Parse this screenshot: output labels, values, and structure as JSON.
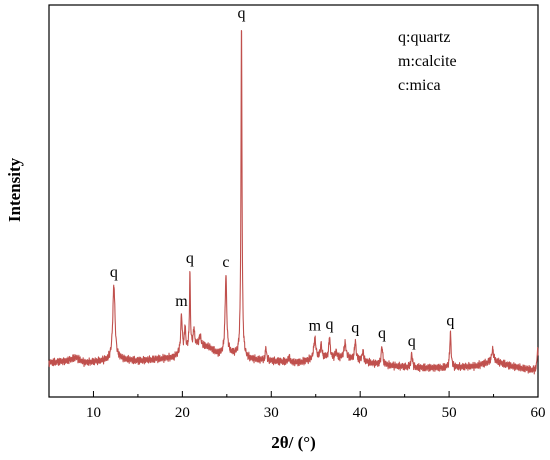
{
  "chart_data": {
    "type": "line",
    "xlabel": "2θ/ (°)",
    "ylabel": "Intensity",
    "xlim": [
      5,
      60
    ],
    "xticks": [
      10,
      20,
      30,
      40,
      50,
      60
    ],
    "xtick_labels": [
      "10",
      "20",
      "30",
      "40",
      "50",
      "60"
    ],
    "y_ticks_shown": false,
    "grid": false,
    "legend_position": "top-right",
    "legend": [
      {
        "key": "q",
        "text": "q:quartz"
      },
      {
        "key": "m",
        "text": "m:calcite"
      },
      {
        "key": "c",
        "text": "c:mica"
      }
    ],
    "colors": {
      "pattern": "#c0504d",
      "text": "#000000",
      "axis": "#000000"
    },
    "baseline_points": [
      [
        5,
        0.045
      ],
      [
        7,
        0.05
      ],
      [
        8,
        0.06
      ],
      [
        9,
        0.045
      ],
      [
        11,
        0.05
      ],
      [
        13,
        0.055
      ],
      [
        15,
        0.05
      ],
      [
        17,
        0.055
      ],
      [
        19,
        0.06
      ],
      [
        21.5,
        0.1
      ],
      [
        23,
        0.09
      ],
      [
        24,
        0.07
      ],
      [
        25.5,
        0.07
      ],
      [
        27.5,
        0.055
      ],
      [
        30,
        0.05
      ],
      [
        33,
        0.045
      ],
      [
        36,
        0.06
      ],
      [
        39,
        0.055
      ],
      [
        42,
        0.04
      ],
      [
        46,
        0.03
      ],
      [
        50,
        0.03
      ],
      [
        53,
        0.035
      ],
      [
        55,
        0.05
      ],
      [
        57,
        0.035
      ],
      [
        60,
        0.02
      ]
    ],
    "peaks": [
      {
        "x": 12.3,
        "height": 0.22,
        "width": 0.3,
        "label": "q"
      },
      {
        "x": 19.9,
        "height": 0.11,
        "width": 0.2,
        "label": "m"
      },
      {
        "x": 20.3,
        "height": 0.07,
        "width": 0.15,
        "label": ""
      },
      {
        "x": 20.85,
        "height": 0.22,
        "width": 0.12,
        "label": "q"
      },
      {
        "x": 21.3,
        "height": 0.05,
        "width": 0.15,
        "label": ""
      },
      {
        "x": 22.0,
        "height": 0.03,
        "width": 0.2,
        "label": ""
      },
      {
        "x": 24.9,
        "height": 0.23,
        "width": 0.22,
        "label": "c"
      },
      {
        "x": 26.65,
        "height": 0.97,
        "width": 0.14,
        "label": "q"
      },
      {
        "x": 29.4,
        "height": 0.04,
        "width": 0.15,
        "label": ""
      },
      {
        "x": 32.0,
        "height": 0.015,
        "width": 0.2,
        "label": ""
      },
      {
        "x": 34.9,
        "height": 0.06,
        "width": 0.3,
        "label": "m"
      },
      {
        "x": 35.6,
        "height": 0.04,
        "width": 0.2,
        "label": ""
      },
      {
        "x": 36.55,
        "height": 0.06,
        "width": 0.18,
        "label": "q"
      },
      {
        "x": 37.3,
        "height": 0.02,
        "width": 0.2,
        "label": ""
      },
      {
        "x": 38.3,
        "height": 0.045,
        "width": 0.3,
        "label": ""
      },
      {
        "x": 39.45,
        "height": 0.055,
        "width": 0.2,
        "label": "q"
      },
      {
        "x": 40.3,
        "height": 0.03,
        "width": 0.2,
        "label": ""
      },
      {
        "x": 42.45,
        "height": 0.055,
        "width": 0.2,
        "label": "q"
      },
      {
        "x": 45.8,
        "height": 0.04,
        "width": 0.2,
        "label": "q"
      },
      {
        "x": 50.15,
        "height": 0.1,
        "width": 0.18,
        "label": "q"
      },
      {
        "x": 54.9,
        "height": 0.035,
        "width": 0.25,
        "label": ""
      },
      {
        "x": 59.95,
        "height": 0.065,
        "width": 0.15,
        "label": ""
      }
    ]
  }
}
